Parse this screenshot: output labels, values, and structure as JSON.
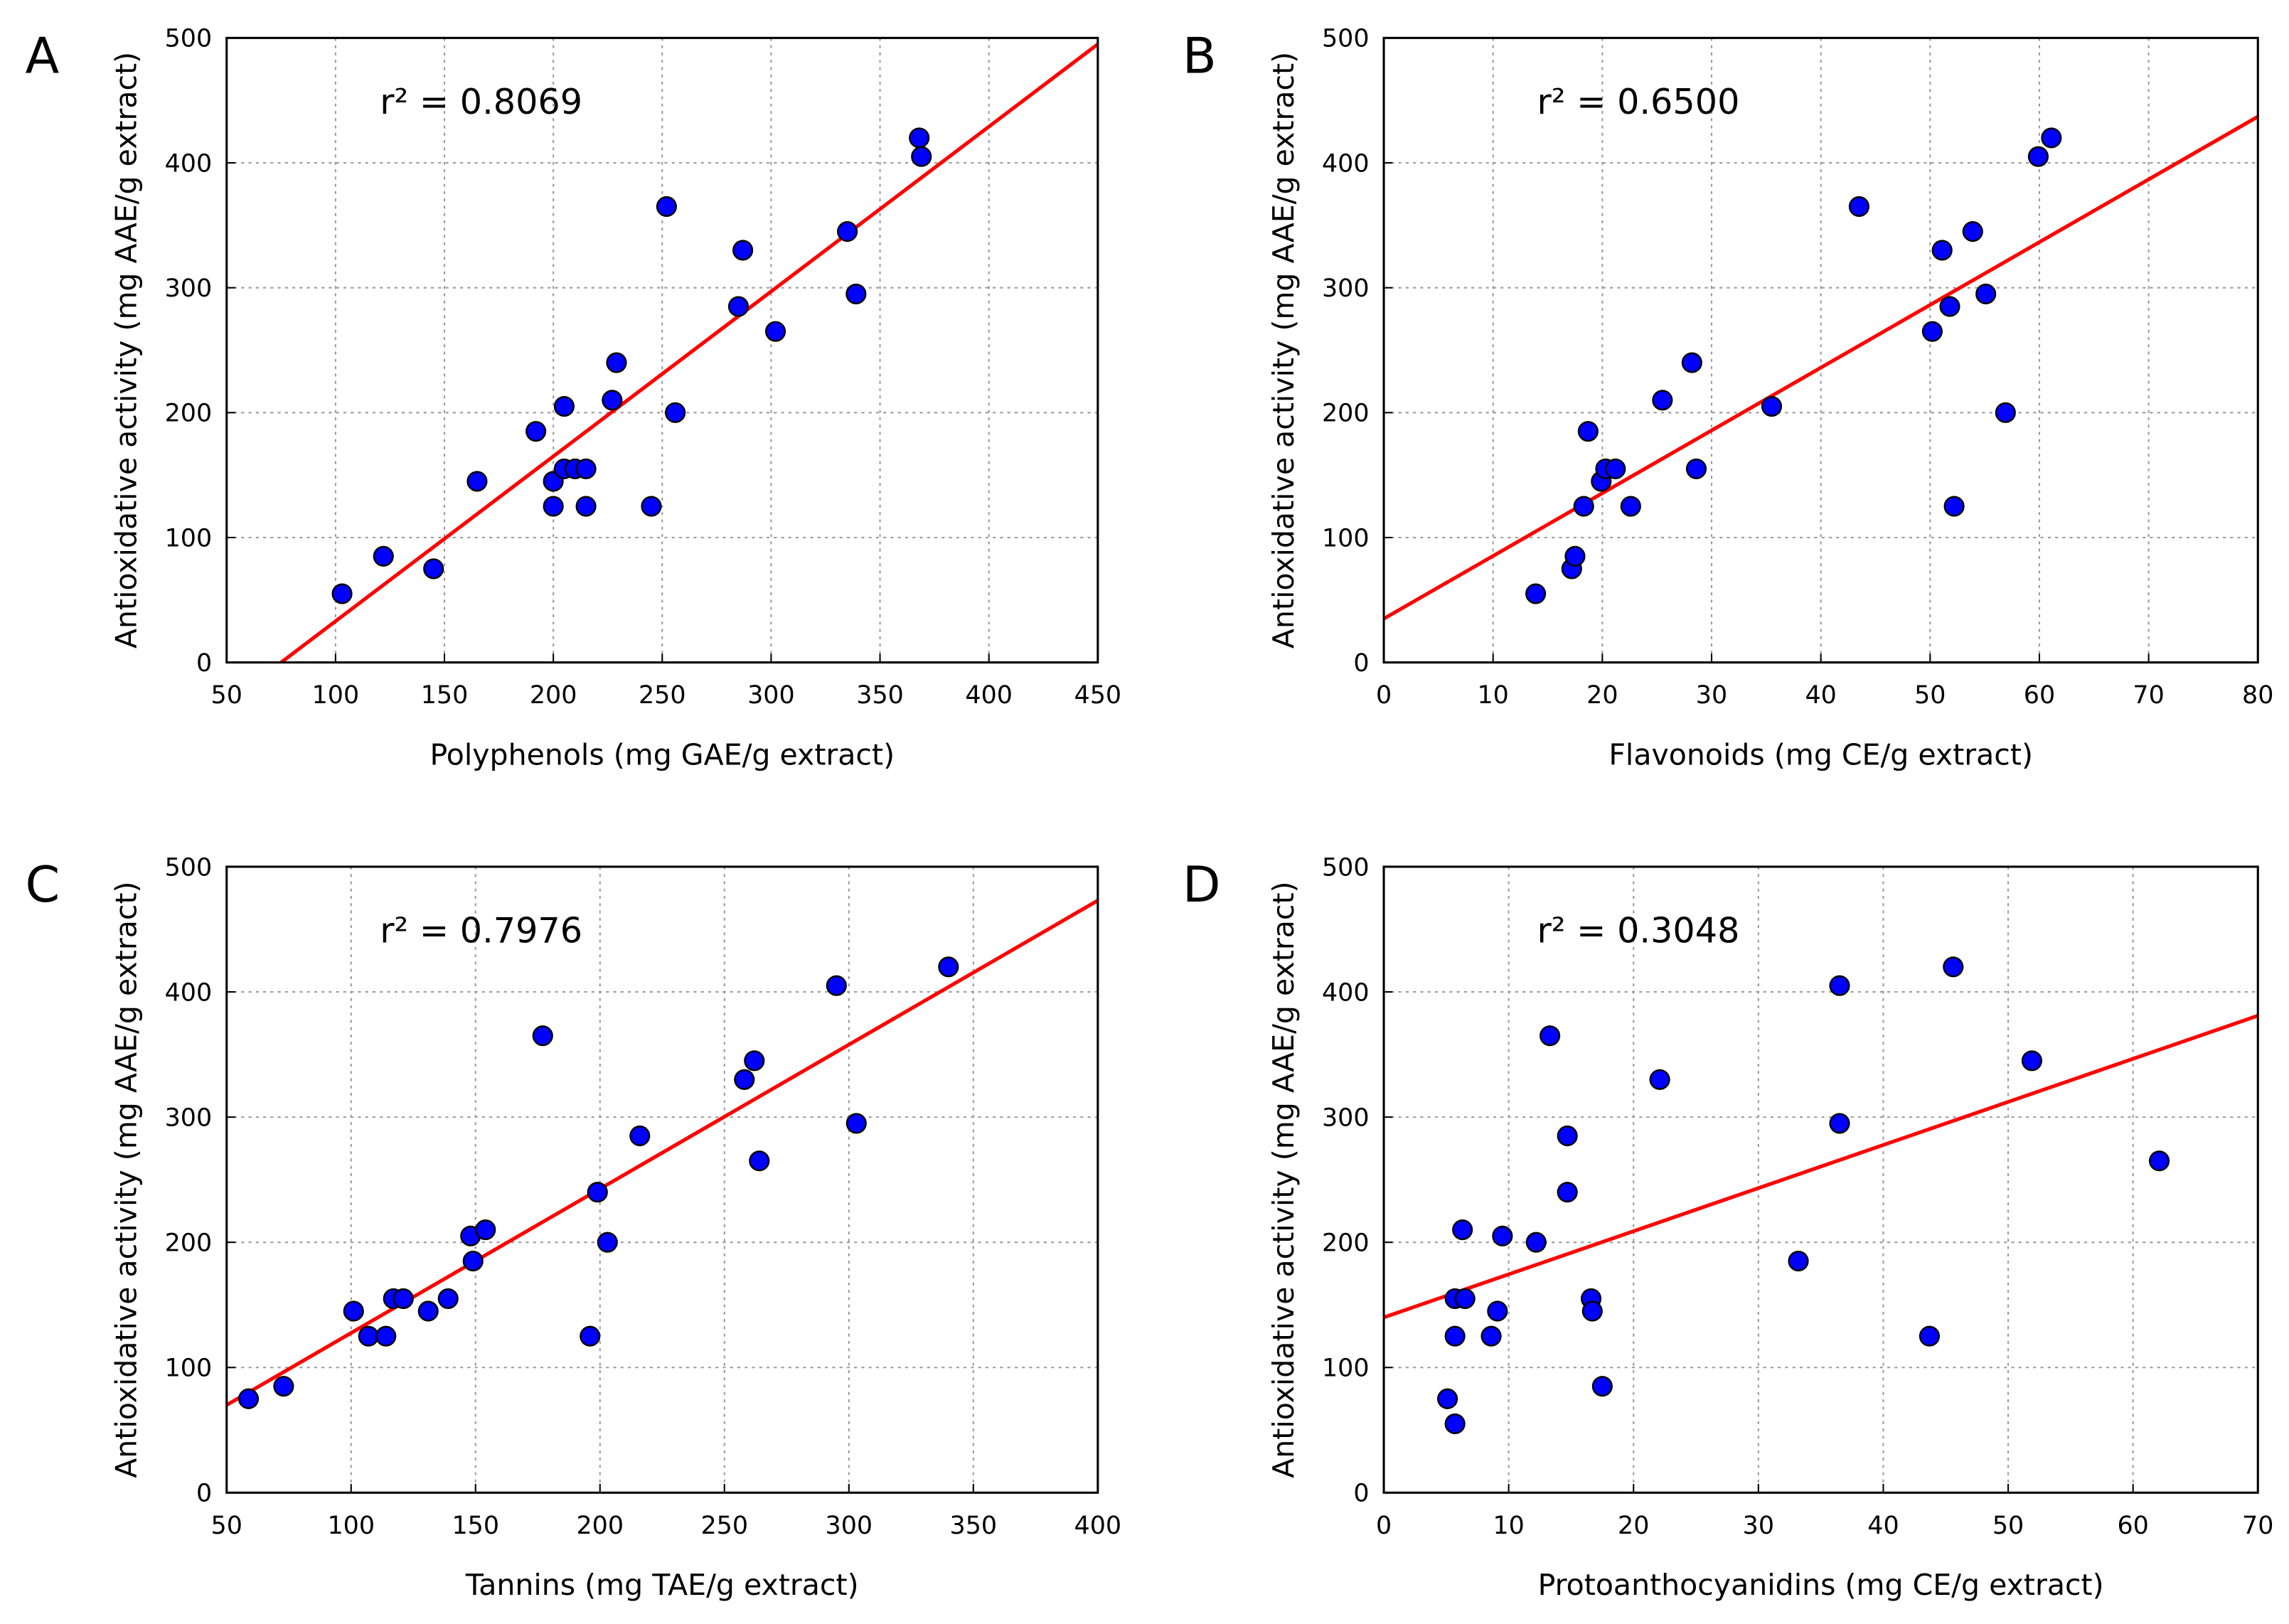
{
  "colors": {
    "points": "#0000ff",
    "line": "#ff0000",
    "grid": "#999999"
  },
  "chart_data": [
    {
      "type": "scatter",
      "panel": "A",
      "r2_label": "r² = 0.8069",
      "xlabel": "Polyphenols (mg GAE/g extract)",
      "ylabel": "Antioxidative activity (mg AAE/g extract)",
      "xlim": [
        50,
        450
      ],
      "ylim": [
        0,
        500
      ],
      "xticks": [
        50,
        100,
        150,
        200,
        250,
        300,
        350,
        400,
        450
      ],
      "yticks": [
        0,
        100,
        200,
        300,
        400,
        500
      ],
      "grid": true,
      "regression": [
        [
          75,
          0
        ],
        [
          450,
          495
        ]
      ],
      "points": [
        [
          103,
          55
        ],
        [
          122,
          85
        ],
        [
          145,
          75
        ],
        [
          165,
          145
        ],
        [
          192,
          185
        ],
        [
          200,
          145
        ],
        [
          200,
          125
        ],
        [
          205,
          205
        ],
        [
          205,
          155
        ],
        [
          210,
          155
        ],
        [
          215,
          155
        ],
        [
          215,
          125
        ],
        [
          227,
          210
        ],
        [
          229,
          240
        ],
        [
          245,
          125
        ],
        [
          252,
          365
        ],
        [
          256,
          200
        ],
        [
          285,
          285
        ],
        [
          287,
          330
        ],
        [
          302,
          265
        ],
        [
          335,
          345
        ],
        [
          339,
          295
        ],
        [
          368,
          420
        ],
        [
          369,
          405
        ]
      ]
    },
    {
      "type": "scatter",
      "panel": "B",
      "r2_label": "r² = 0.6500",
      "xlabel": "Flavonoids (mg CE/g extract)",
      "ylabel": "Antioxidative activity (mg AAE/g extract)",
      "xlim": [
        0,
        80
      ],
      "ylim": [
        0,
        500
      ],
      "xticks": [
        0,
        10,
        20,
        30,
        40,
        50,
        60,
        70,
        80
      ],
      "yticks": [
        0,
        100,
        200,
        300,
        400,
        500
      ],
      "grid": true,
      "regression": [
        [
          0,
          35
        ],
        [
          80,
          437
        ]
      ],
      "points": [
        [
          13.9,
          55
        ],
        [
          17.2,
          75
        ],
        [
          17.5,
          85
        ],
        [
          18.7,
          185
        ],
        [
          18.3,
          125
        ],
        [
          19.9,
          145
        ],
        [
          20.3,
          155
        ],
        [
          21.2,
          155
        ],
        [
          22.6,
          125
        ],
        [
          25.5,
          210
        ],
        [
          28.2,
          240
        ],
        [
          28.6,
          155
        ],
        [
          35.5,
          205
        ],
        [
          43.5,
          365
        ],
        [
          50.2,
          265
        ],
        [
          51.1,
          330
        ],
        [
          51.8,
          285
        ],
        [
          52.2,
          125
        ],
        [
          53.9,
          345
        ],
        [
          55.1,
          295
        ],
        [
          56.9,
          200
        ],
        [
          59.9,
          405
        ],
        [
          61.1,
          420
        ]
      ]
    },
    {
      "type": "scatter",
      "panel": "C",
      "r2_label": "r² = 0.7976",
      "xlabel": "Tannins (mg TAE/g extract)",
      "ylabel": "Antioxidative activity (mg AAE/g extract)",
      "xlim": [
        50,
        400
      ],
      "ylim": [
        0,
        500
      ],
      "xticks": [
        50,
        100,
        150,
        200,
        250,
        300,
        350,
        400
      ],
      "yticks": [
        0,
        100,
        200,
        300,
        400,
        500
      ],
      "grid": true,
      "regression": [
        [
          50,
          70
        ],
        [
          400,
          473
        ]
      ],
      "points": [
        [
          58.8,
          75
        ],
        [
          72.9,
          85
        ],
        [
          101,
          145
        ],
        [
          107,
          125
        ],
        [
          114,
          125
        ],
        [
          117,
          155
        ],
        [
          121,
          155
        ],
        [
          131,
          145
        ],
        [
          139,
          155
        ],
        [
          149,
          185
        ],
        [
          148,
          205
        ],
        [
          154,
          210
        ],
        [
          177,
          365
        ],
        [
          196,
          125
        ],
        [
          199,
          240
        ],
        [
          203,
          200
        ],
        [
          216,
          285
        ],
        [
          258,
          330
        ],
        [
          262,
          345
        ],
        [
          264,
          265
        ],
        [
          295,
          405
        ],
        [
          303,
          295
        ],
        [
          340,
          420
        ]
      ]
    },
    {
      "type": "scatter",
      "panel": "D",
      "r2_label": "r² = 0.3048",
      "xlabel": "Protoanthocyanidins (mg CE/g extract)",
      "ylabel": "Antioxidative activity (mg AAE/g extract)",
      "xlim": [
        0,
        70
      ],
      "ylim": [
        0,
        500
      ],
      "xticks": [
        0,
        10,
        20,
        30,
        40,
        50,
        60,
        70
      ],
      "yticks": [
        0,
        100,
        200,
        300,
        400,
        500
      ],
      "grid": true,
      "regression": [
        [
          0,
          140
        ],
        [
          70,
          381
        ]
      ],
      "points": [
        [
          5.1,
          75
        ],
        [
          5.7,
          55
        ],
        [
          5.7,
          125
        ],
        [
          5.7,
          155
        ],
        [
          6.5,
          155
        ],
        [
          6.3,
          210
        ],
        [
          8.6,
          125
        ],
        [
          9.1,
          145
        ],
        [
          9.5,
          205
        ],
        [
          12.2,
          200
        ],
        [
          13.3,
          365
        ],
        [
          14.7,
          285
        ],
        [
          14.7,
          240
        ],
        [
          16.6,
          155
        ],
        [
          16.7,
          145
        ],
        [
          17.5,
          85
        ],
        [
          22.1,
          330
        ],
        [
          33.2,
          185
        ],
        [
          36.5,
          405
        ],
        [
          36.5,
          295
        ],
        [
          43.7,
          125
        ],
        [
          45.6,
          420
        ],
        [
          51.9,
          345
        ],
        [
          62.1,
          265
        ]
      ]
    }
  ]
}
